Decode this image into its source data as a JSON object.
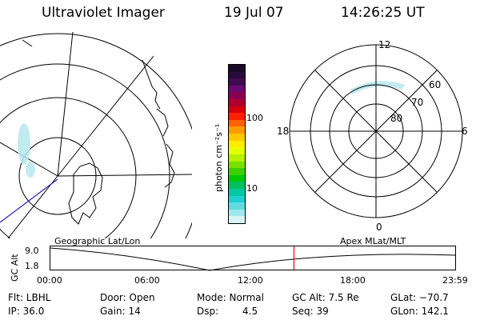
{
  "header": {
    "title": "Ultraviolet Imager",
    "date": "19 Jul 07",
    "time": "14:26:25 UT"
  },
  "colorbar": {
    "label": "photon cm⁻²s⁻¹",
    "ticks": [
      "100",
      "10"
    ],
    "colors": [
      "#1a0a2a",
      "#2a0a3a",
      "#400a50",
      "#6a0a70",
      "#8a0050",
      "#b00030",
      "#d80010",
      "#ff2000",
      "#ff6000",
      "#ff9a00",
      "#ffc800",
      "#ffee00",
      "#e6ff00",
      "#b4f000",
      "#7ae000",
      "#3cd000",
      "#00c800",
      "#00c060",
      "#00c8a0",
      "#20d0d0",
      "#60dce0",
      "#a0e8ee",
      "#d8f4f6"
    ]
  },
  "geo_panel": {
    "caption": "Geographic Lat/Lon"
  },
  "polar_panel": {
    "caption": "Apex MLat/MLT",
    "labels": {
      "top": "12",
      "bottom": "0",
      "left": "18",
      "right": "6"
    },
    "lat_labels": [
      "60",
      "70",
      "80"
    ]
  },
  "timeline": {
    "axis_label": "GC Alt",
    "y_ticks": [
      "9.0",
      "1.8"
    ],
    "x_ticks": [
      "00:00",
      "06:00",
      "12:00",
      "18:00",
      "23:59"
    ],
    "current_time_fraction": 0.6017
  },
  "status": {
    "flt": "Flt: LBHL",
    "ip": "IP: 36.0",
    "door": "Door: Open",
    "gain": "Gain: 14",
    "mode": "Mode: Normal",
    "dsp": "Dsp:",
    "dsp_value": "4.5",
    "gc_alt": "GC Alt: 7.5 Re",
    "seq": "Seq: 39",
    "glat": "GLat: −70.7",
    "glon": "GLon: 142.1"
  },
  "accent_colors": {
    "marker": "#ff0000",
    "track": "#2020c0",
    "aurora": "#b8e8ee"
  }
}
